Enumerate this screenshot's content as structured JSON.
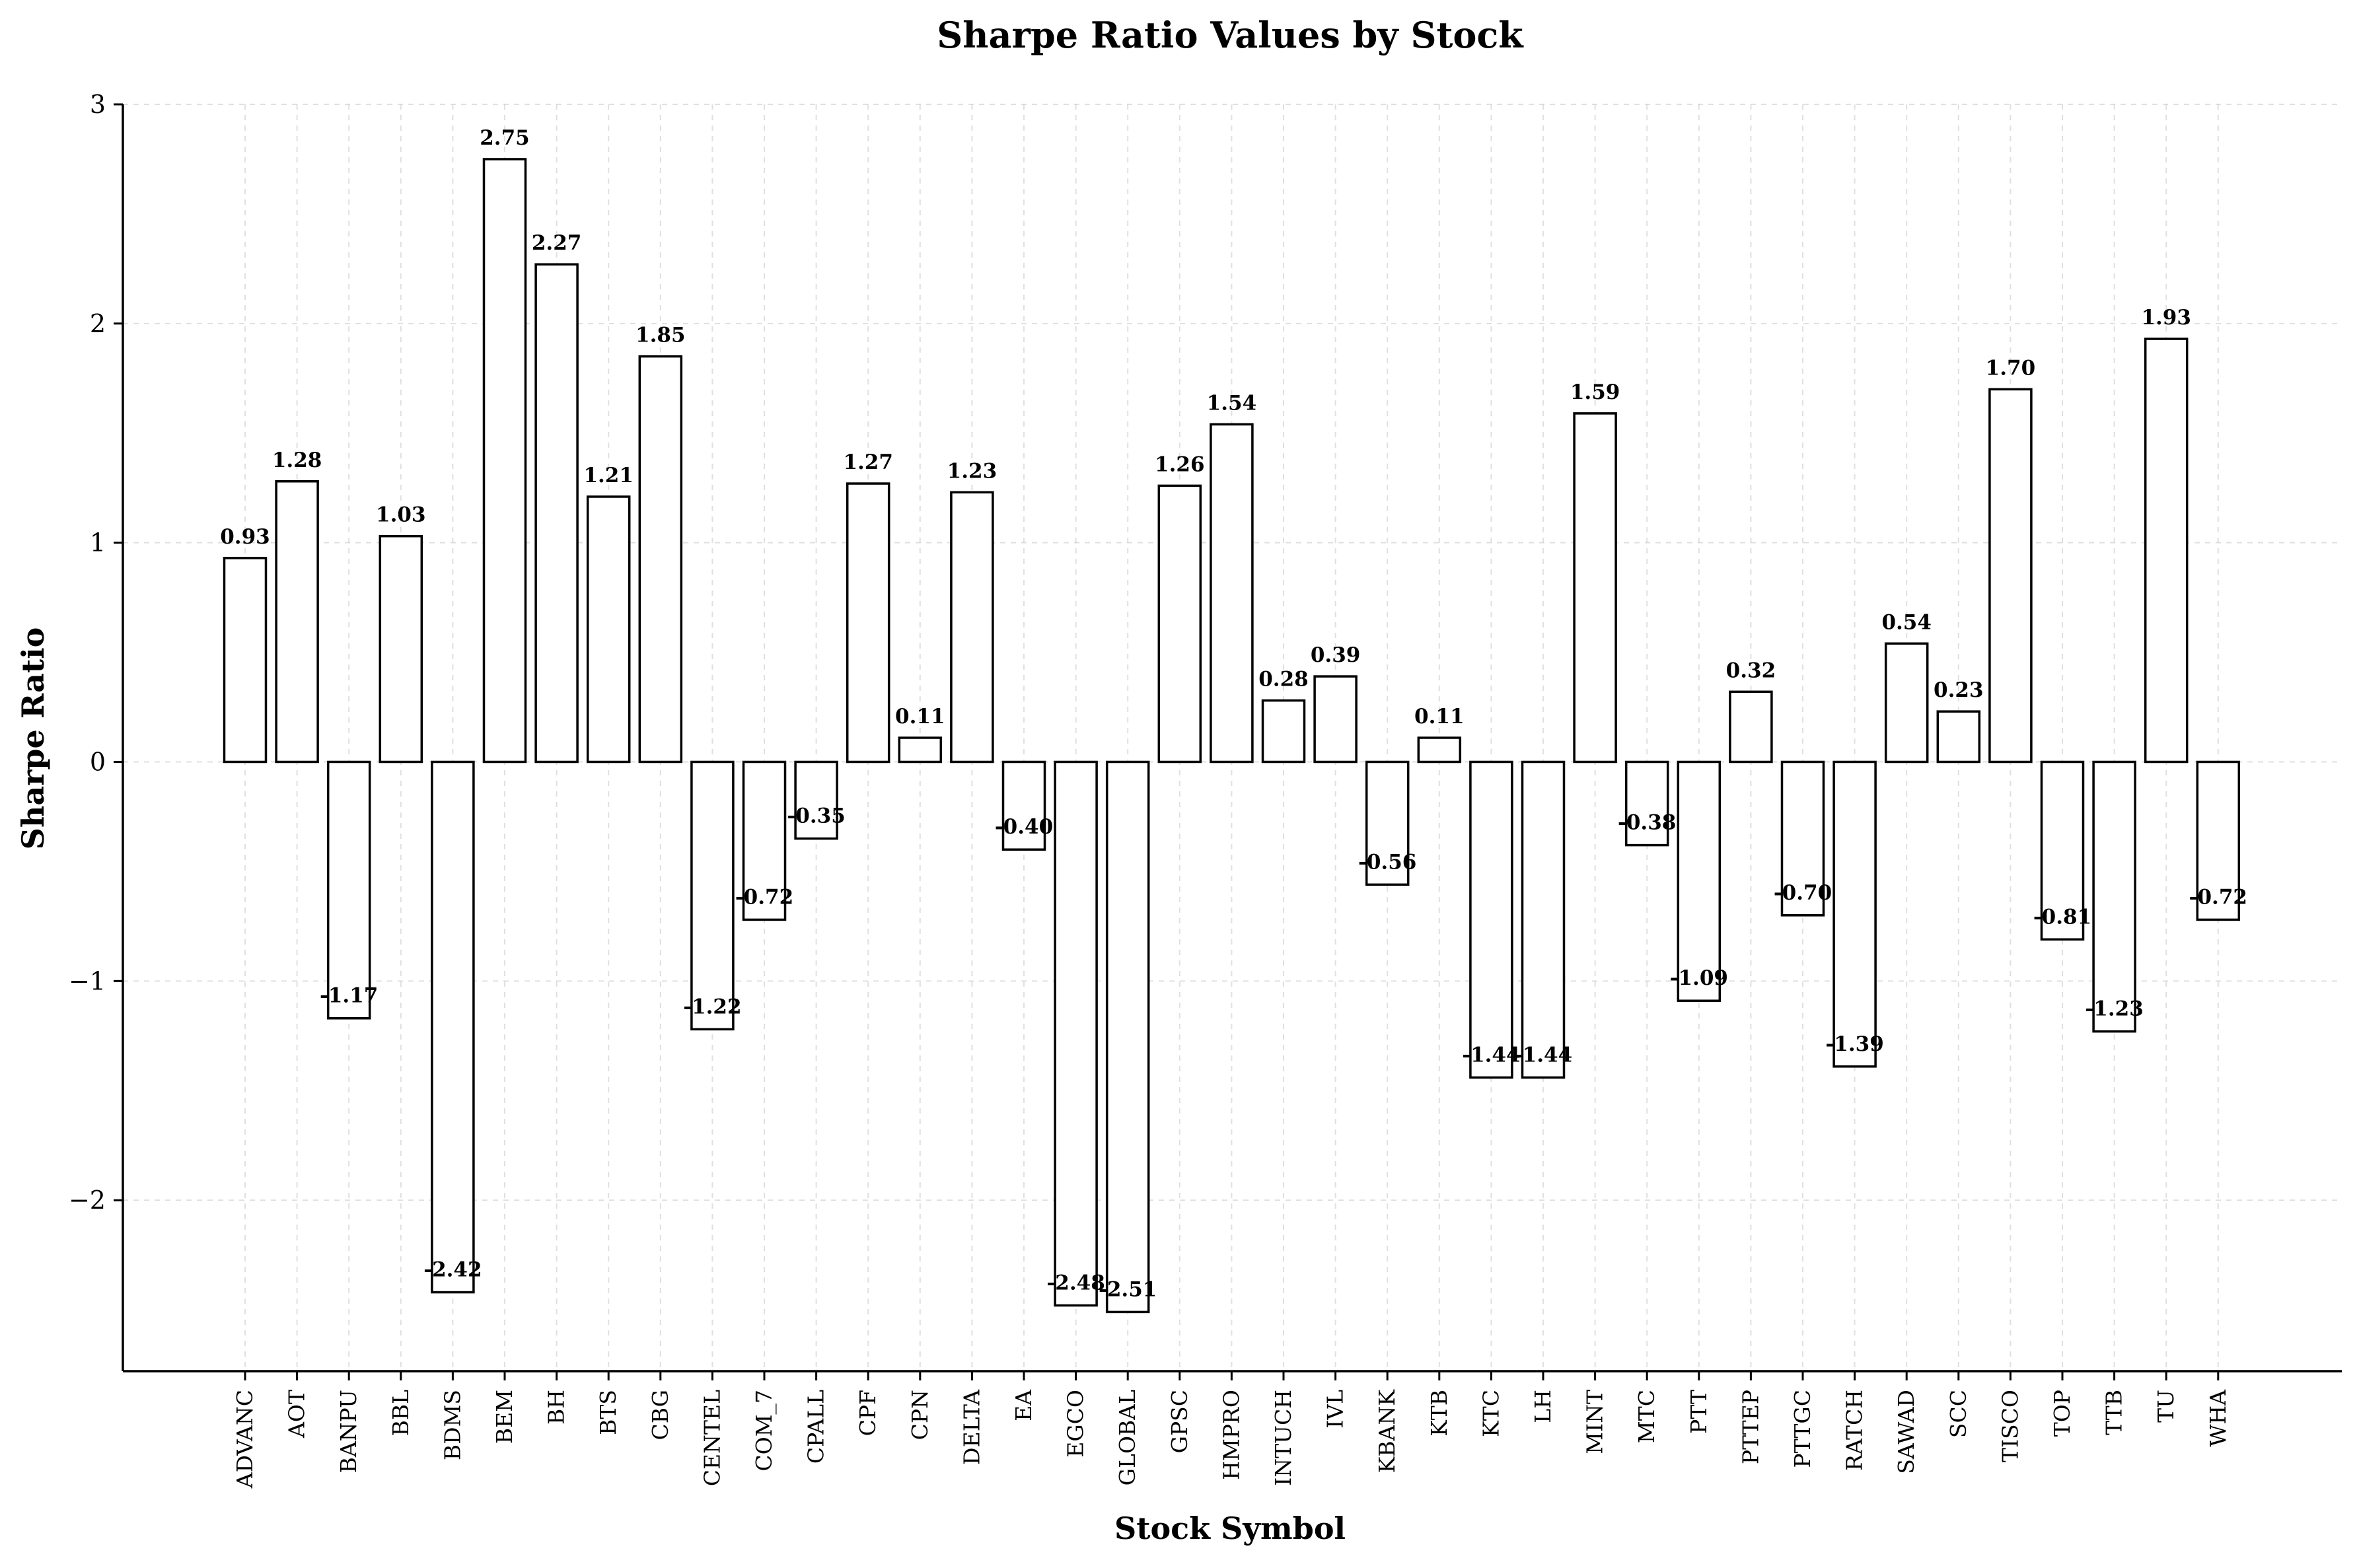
{
  "chart_data": {
    "type": "bar",
    "title": "Sharpe Ratio Values by Stock",
    "xlabel": "Stock Symbol",
    "ylabel": "Sharpe Ratio",
    "ylim": [
      -2.78,
      3.0
    ],
    "yticks": [
      3,
      2,
      1,
      0,
      -1,
      -2
    ],
    "ytick_labels": [
      "3",
      "2",
      "1",
      "0",
      "−1",
      "−2"
    ],
    "grid": true,
    "bar_fill": "#ffffff",
    "bar_edge": "#000000",
    "categories": [
      "ADVANC",
      "AOT",
      "BANPU",
      "BBL",
      "BDMS",
      "BEM",
      "BH",
      "BTS",
      "CBG",
      "CENTEL",
      "COM_7",
      "CPALL",
      "CPF",
      "CPN",
      "DELTA",
      "EA",
      "EGCO",
      "GLOBAL",
      "GPSC",
      "HMPRO",
      "INTUCH",
      "IVL",
      "KBANK",
      "KTB",
      "KTC",
      "LH",
      "MINT",
      "MTC",
      "PTT",
      "PTTEP",
      "PTTGC",
      "RATCH",
      "SAWAD",
      "SCC",
      "TISCO",
      "TOP",
      "TTB",
      "TU",
      "WHA"
    ],
    "values": [
      0.93,
      1.28,
      -1.17,
      1.03,
      -2.42,
      2.75,
      2.27,
      1.21,
      1.85,
      -1.22,
      -0.72,
      -0.35,
      1.27,
      0.11,
      1.23,
      -0.4,
      -2.48,
      -2.51,
      1.26,
      1.54,
      0.28,
      0.39,
      -0.56,
      0.11,
      -1.44,
      -1.44,
      1.59,
      -0.38,
      -1.09,
      0.32,
      -0.7,
      -1.39,
      0.54,
      0.23,
      1.7,
      -0.81,
      -1.23,
      1.93,
      -0.72
    ],
    "value_labels": [
      "0.93",
      "1.28",
      "-1.17",
      "1.03",
      "-2.42",
      "2.75",
      "2.27",
      "1.21",
      "1.85",
      "-1.22",
      "-0.72",
      "-0.35",
      "1.27",
      "0.11",
      "1.23",
      "-0.40",
      "-2.48",
      "-2.51",
      "1.26",
      "1.54",
      "0.28",
      "0.39",
      "-0.56",
      "0.11",
      "-1.44",
      "-1.44",
      "1.59",
      "-0.38",
      "-1.09",
      "0.32",
      "-0.70",
      "-1.39",
      "0.54",
      "0.23",
      "1.70",
      "-0.81",
      "-1.23",
      "1.93",
      "-0.72"
    ]
  }
}
